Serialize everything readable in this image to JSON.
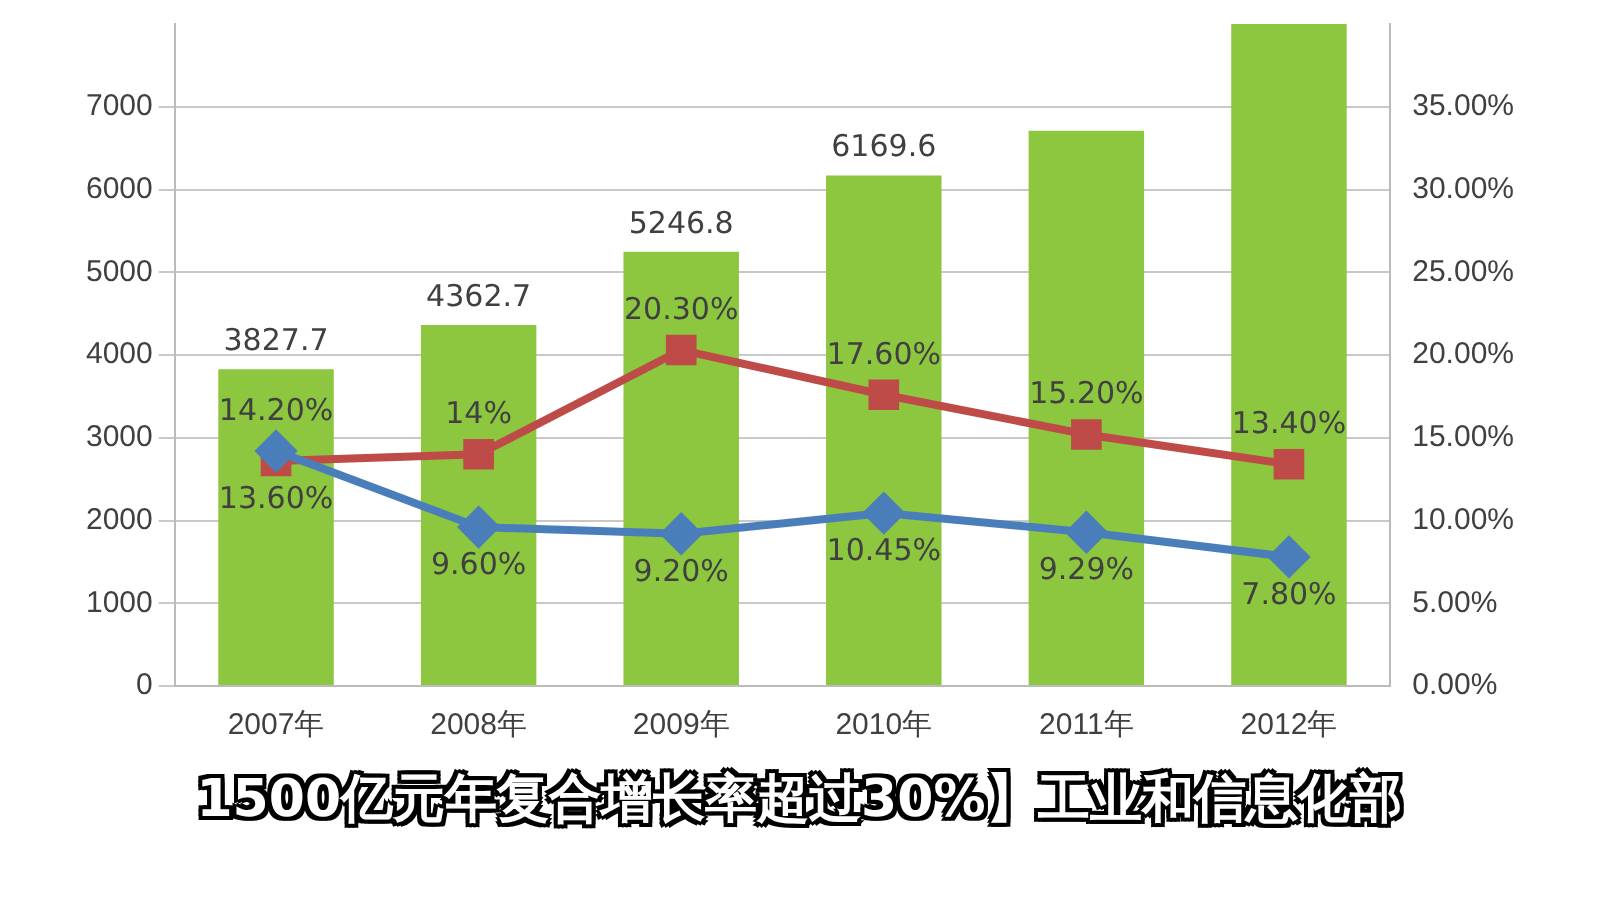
{
  "chart_data": {
    "type": "bar",
    "categories": [
      "2007年",
      "2008年",
      "2009年",
      "2010年",
      "2011年",
      "2012年"
    ],
    "series": [
      {
        "color": "#8dc63f",
        "values": [
          3827.7,
          4362.7,
          5246.8,
          6169.6,
          6710,
          8000
        ],
        "value_labels": [
          "3827.7",
          "4362.7",
          "5246.8",
          "6169.6",
          null,
          null
        ]
      },
      {
        "type": "line",
        "axis": "y2",
        "color": "#4a7ebb",
        "marker": "diamond",
        "values": [
          14.2,
          9.6,
          9.2,
          10.45,
          9.29,
          7.8
        ],
        "value_labels": [
          "14.20%",
          "9.60%",
          "9.20%",
          "10.45%",
          "9.29%",
          "7.80%"
        ]
      },
      {
        "type": "line",
        "axis": "y2",
        "color": "#be4b48",
        "marker": "square",
        "values": [
          13.6,
          14,
          20.3,
          17.6,
          15.2,
          13.4
        ],
        "value_labels": [
          "13.60%",
          "14%",
          "20.30%",
          "17.60%",
          "15.20%",
          "13.40%"
        ]
      }
    ],
    "ylim": [
      0,
      8000
    ],
    "yticks": [
      0,
      1000,
      2000,
      3000,
      4000,
      5000,
      6000,
      7000
    ],
    "y2lim": [
      0,
      40
    ],
    "y2ticks": [
      {
        "value": 0,
        "label": "0.00%"
      },
      {
        "value": 5,
        "label": "5.00%"
      },
      {
        "value": 10,
        "label": "10.00%"
      },
      {
        "value": 15,
        "label": "15.00%"
      },
      {
        "value": 20,
        "label": "20.00%"
      },
      {
        "value": 25,
        "label": "25.00%"
      },
      {
        "value": 30,
        "label": "30.00%"
      },
      {
        "value": 35,
        "label": "35.00%"
      }
    ],
    "grid": "y",
    "legend": false,
    "annotations": [
      "1500亿元年复合增长率超过30%】工业和信息化部"
    ]
  }
}
